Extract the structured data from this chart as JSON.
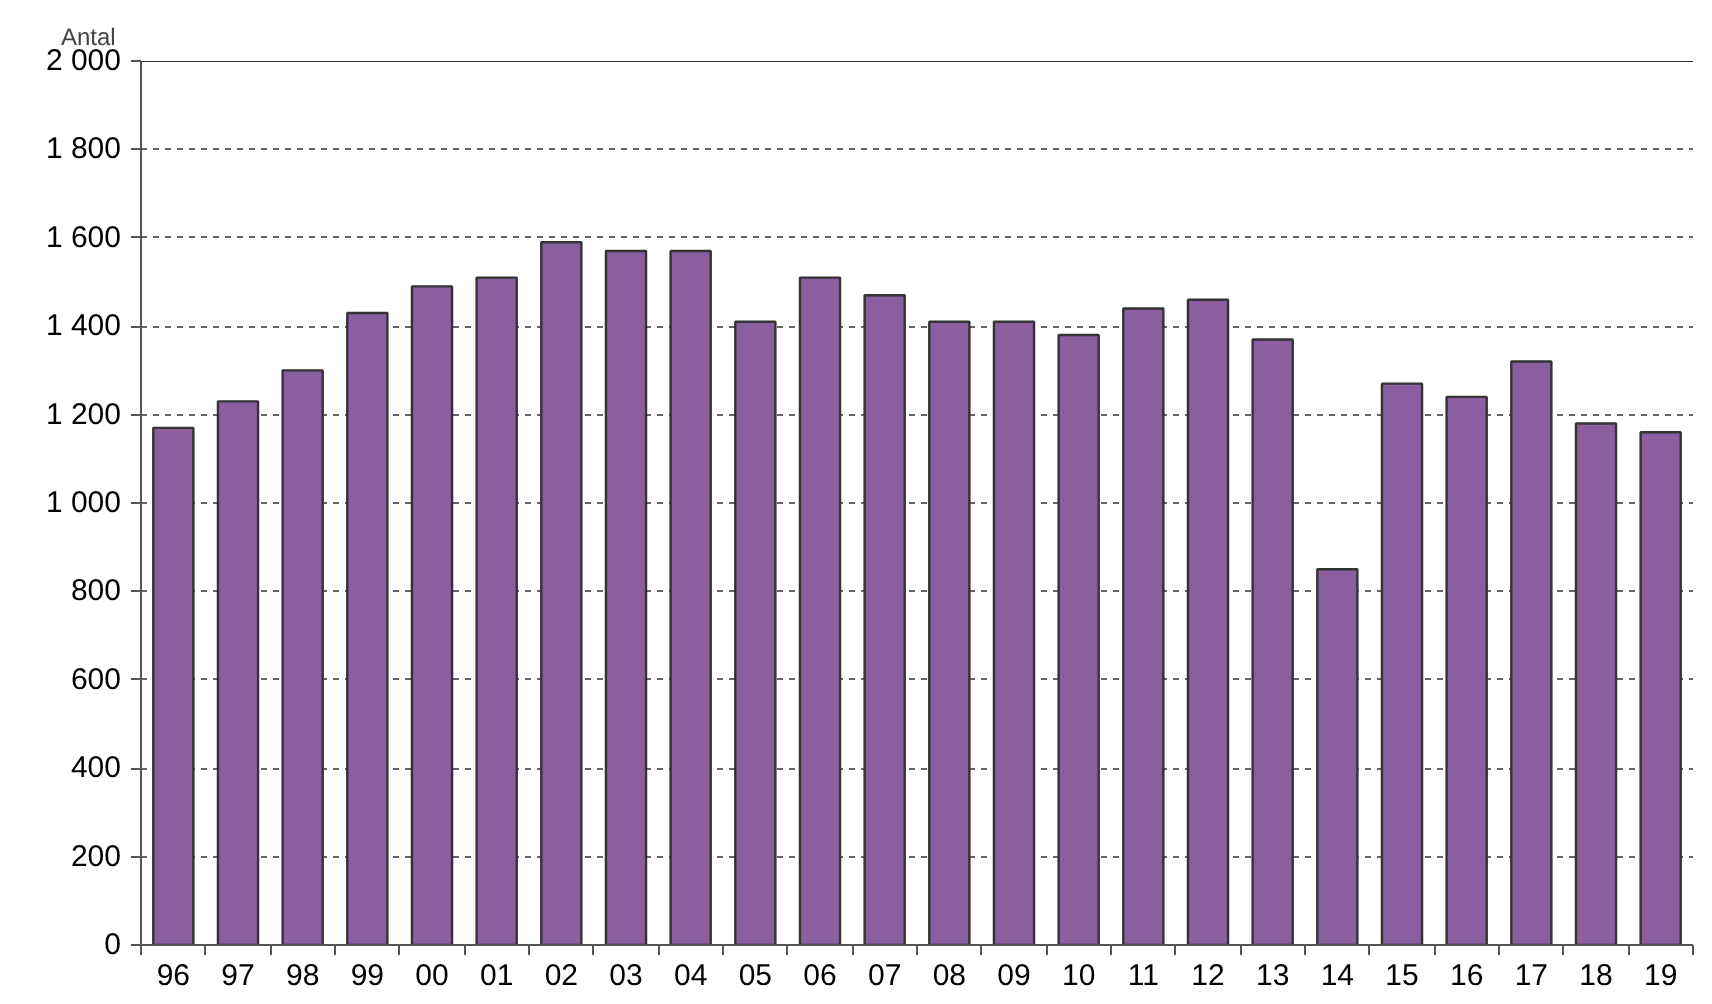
{
  "chart_data": {
    "type": "bar",
    "ylabel": "Antal",
    "categories": [
      "96",
      "97",
      "98",
      "99",
      "00",
      "01",
      "02",
      "03",
      "04",
      "05",
      "06",
      "07",
      "08",
      "09",
      "10",
      "11",
      "12",
      "13",
      "14",
      "15",
      "16",
      "17",
      "18",
      "19"
    ],
    "values": [
      1170,
      1230,
      1300,
      1430,
      1490,
      1510,
      1590,
      1570,
      1570,
      1410,
      1510,
      1470,
      1410,
      1410,
      1380,
      1440,
      1460,
      1370,
      850,
      1270,
      1240,
      1320,
      1180,
      1160
    ],
    "color": "#8b5e9f",
    "ylim": [
      0,
      2000
    ],
    "yticks": [
      0,
      200,
      400,
      600,
      800,
      {
        "value": 1000,
        "label": "1 000"
      },
      {
        "value": 1200,
        "label": "1 200"
      },
      {
        "value": 1400,
        "label": "1 400"
      },
      {
        "value": 1600,
        "label": "1 600"
      },
      {
        "value": 1800,
        "label": "1 800"
      },
      {
        "value": 2000,
        "label": "2 000"
      }
    ],
    "grid": "y"
  }
}
